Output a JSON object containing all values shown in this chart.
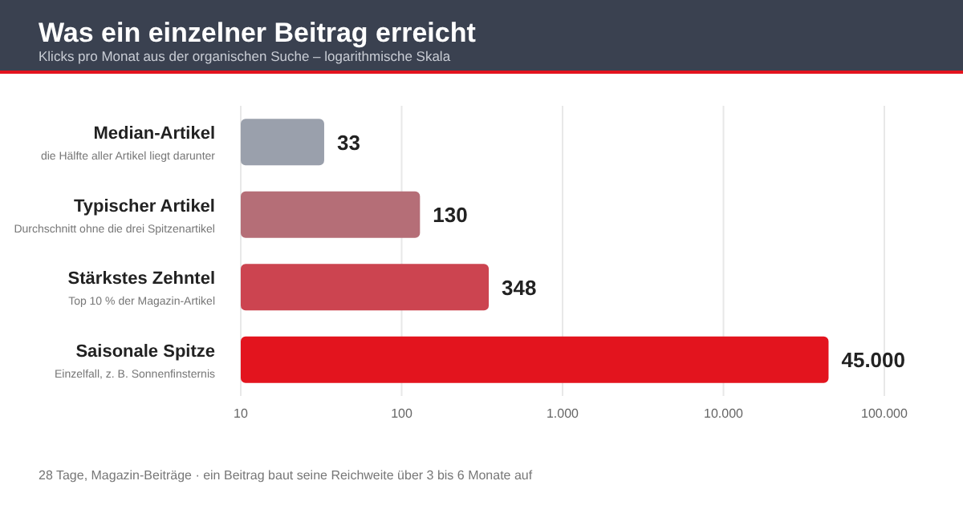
{
  "chart_data": {
    "type": "bar",
    "orientation": "horizontal",
    "title": "Was ein einzelner Beitrag erreicht",
    "subtitle": "Klicks pro Monat aus der organischen Suche – logarithmische Skala",
    "categories": [
      "Median-Artikel\ndie Hälfte aller Artikel liegt darunter",
      "Typischer Artikel\nDurchschnitt ohne die drei Spitzenartikel",
      "Stärkstes Zehntel\nTop 10 % der Magazin-Artikel",
      "Saisonale Spitze\nEinzelfall, z. B. Sonnenfinsternis"
    ],
    "values": [
      33,
      130,
      348,
      45000
    ],
    "colors": [
      "#9aa0ac",
      "#b56e77",
      "#cc4450",
      "#e3141e"
    ],
    "value_labels": [
      "33",
      "130",
      "348",
      "45.000"
    ],
    "log": "x",
    "xlim": [
      10,
      100000
    ],
    "xticks": [
      10,
      100,
      {
        "value": 1000,
        "label": "1.000"
      },
      {
        "value": 10000,
        "label": "10.000"
      },
      {
        "value": 100000,
        "label": "100.000"
      }
    ],
    "grid": "x",
    "annotations": [
      "28 Tage, Magazin-Beiträge · ein Beitrag baut seine Reichweite über 3 bis 6 Monate auf"
    ]
  }
}
